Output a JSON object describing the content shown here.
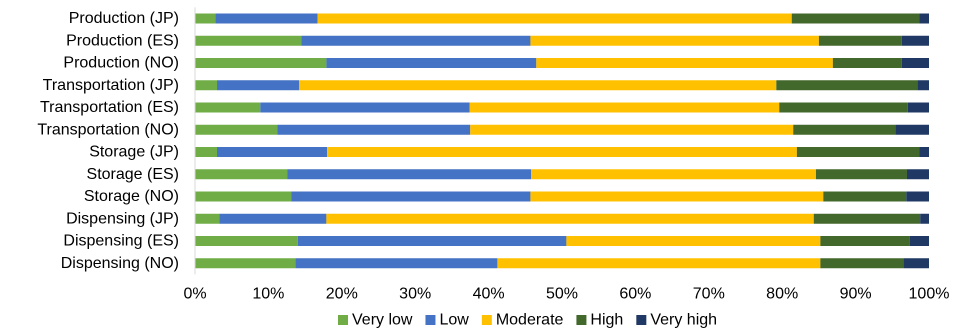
{
  "chart_data": {
    "type": "bar",
    "orientation": "horizontal",
    "stacked": true,
    "percent_stacked": true,
    "title": "",
    "xlabel": "",
    "ylabel": "",
    "xlim": [
      0,
      100
    ],
    "x_ticks": [
      "0%",
      "10%",
      "20%",
      "30%",
      "40%",
      "50%",
      "60%",
      "70%",
      "80%",
      "90%",
      "100%"
    ],
    "grid": false,
    "legend_position": "bottom",
    "categories": [
      "Production (JP)",
      "Production (ES)",
      "Production (NO)",
      "Transportation (JP)",
      "Transportation (ES)",
      "Transportation (NO)",
      "Storage (JP)",
      "Storage (ES)",
      "Storage (NO)",
      "Dispensing (JP)",
      "Dispensing (ES)",
      "Dispensing (NO)"
    ],
    "series": [
      {
        "name": "Very low",
        "color": "#70ad47",
        "values": [
          2.8,
          14.5,
          17.9,
          3.0,
          8.9,
          11.2,
          3.0,
          12.6,
          13.1,
          3.3,
          14.0,
          13.7
        ]
      },
      {
        "name": "Low",
        "color": "#4472c4",
        "values": [
          13.9,
          31.2,
          28.6,
          11.2,
          28.5,
          26.3,
          15.0,
          33.2,
          32.6,
          14.6,
          36.6,
          27.5
        ]
      },
      {
        "name": "Moderate",
        "color": "#ffc000",
        "values": [
          64.6,
          39.3,
          40.4,
          65.0,
          42.2,
          44.0,
          64.0,
          38.8,
          39.9,
          66.4,
          34.6,
          44.0
        ]
      },
      {
        "name": "High",
        "color": "#43682b",
        "values": [
          17.4,
          11.3,
          9.4,
          19.2,
          17.5,
          13.9,
          16.7,
          12.4,
          11.3,
          14.5,
          12.2,
          11.3
        ]
      },
      {
        "name": "Very high",
        "color": "#203864",
        "values": [
          1.3,
          3.7,
          3.7,
          1.6,
          2.9,
          4.6,
          1.3,
          3.0,
          3.1,
          1.2,
          2.6,
          3.5
        ]
      }
    ]
  }
}
